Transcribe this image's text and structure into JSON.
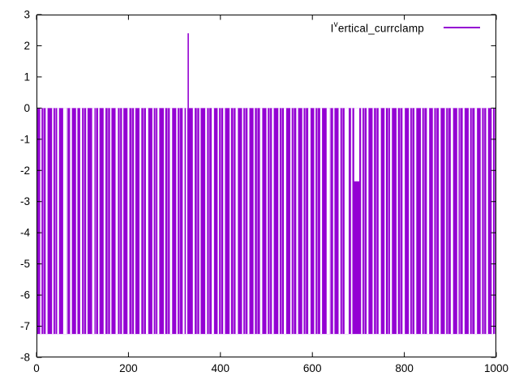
{
  "legend": {
    "prefix": "I",
    "sup": "v",
    "rest": "ertical_currclamp",
    "line_color": "#9400d3"
  },
  "chart_data": {
    "type": "impulses",
    "title": "",
    "series_label": "I^vertical_currclamp",
    "color": "#9400d3",
    "background": "#ffffff",
    "border_color": "#000000",
    "grid": false,
    "legend_position": "top-right",
    "xlabel": "",
    "ylabel": "",
    "xlim": [
      0,
      1000
    ],
    "ylim": [
      -8,
      3
    ],
    "xticks": [
      0,
      200,
      400,
      600,
      800,
      1000
    ],
    "yticks": [
      3,
      2,
      1,
      0,
      -1,
      -2,
      -3,
      -4,
      -5,
      -6,
      -7,
      -8
    ],
    "baseline": 0,
    "floor": -7.25,
    "spike": {
      "x": 330,
      "y": 2.4
    },
    "notch": {
      "x0": 691,
      "x1": 702,
      "top": 0,
      "bottom": -2.35
    },
    "gaps": [
      [
        8,
        3
      ],
      [
        20,
        4
      ],
      [
        34,
        3
      ],
      [
        45,
        4
      ],
      [
        58,
        8
      ],
      [
        73,
        4
      ],
      [
        86,
        3
      ],
      [
        95,
        4
      ],
      [
        108,
        3
      ],
      [
        121,
        5
      ],
      [
        134,
        3
      ],
      [
        146,
        4
      ],
      [
        160,
        3
      ],
      [
        172,
        5
      ],
      [
        186,
        3
      ],
      [
        198,
        4
      ],
      [
        212,
        3
      ],
      [
        224,
        4
      ],
      [
        238,
        5
      ],
      [
        252,
        3
      ],
      [
        263,
        4
      ],
      [
        277,
        3
      ],
      [
        290,
        5
      ],
      [
        304,
        3
      ],
      [
        318,
        4
      ],
      [
        325,
        3
      ],
      [
        340,
        4
      ],
      [
        354,
        3
      ],
      [
        367,
        4
      ],
      [
        381,
        5
      ],
      [
        394,
        3
      ],
      [
        406,
        4
      ],
      [
        420,
        3
      ],
      [
        433,
        5
      ],
      [
        447,
        3
      ],
      [
        459,
        4
      ],
      [
        472,
        3
      ],
      [
        486,
        5
      ],
      [
        500,
        3
      ],
      [
        512,
        4
      ],
      [
        526,
        3
      ],
      [
        538,
        5
      ],
      [
        552,
        3
      ],
      [
        565,
        4
      ],
      [
        578,
        3
      ],
      [
        591,
        5
      ],
      [
        604,
        3
      ],
      [
        617,
        4
      ],
      [
        631,
        7
      ],
      [
        645,
        3
      ],
      [
        657,
        4
      ],
      [
        670,
        9
      ],
      [
        684,
        3
      ],
      [
        706,
        3
      ],
      [
        718,
        4
      ],
      [
        731,
        3
      ],
      [
        744,
        5
      ],
      [
        757,
        3
      ],
      [
        769,
        4
      ],
      [
        783,
        3
      ],
      [
        796,
        5
      ],
      [
        810,
        3
      ],
      [
        822,
        4
      ],
      [
        836,
        3
      ],
      [
        849,
        5
      ],
      [
        862,
        3
      ],
      [
        875,
        4
      ],
      [
        888,
        3
      ],
      [
        901,
        5
      ],
      [
        915,
        3
      ],
      [
        927,
        4
      ],
      [
        940,
        3
      ],
      [
        953,
        5
      ],
      [
        966,
        3
      ],
      [
        978,
        4
      ],
      [
        990,
        3
      ]
    ],
    "soft_streaks": [
      14,
      40,
      66,
      102,
      128,
      154,
      180,
      206,
      232,
      258,
      284,
      310,
      348,
      374,
      400,
      427,
      453,
      479,
      506,
      532,
      558,
      584,
      610,
      638,
      664,
      712,
      738,
      764,
      790,
      816,
      842,
      868,
      894,
      920,
      946,
      972,
      996
    ]
  }
}
